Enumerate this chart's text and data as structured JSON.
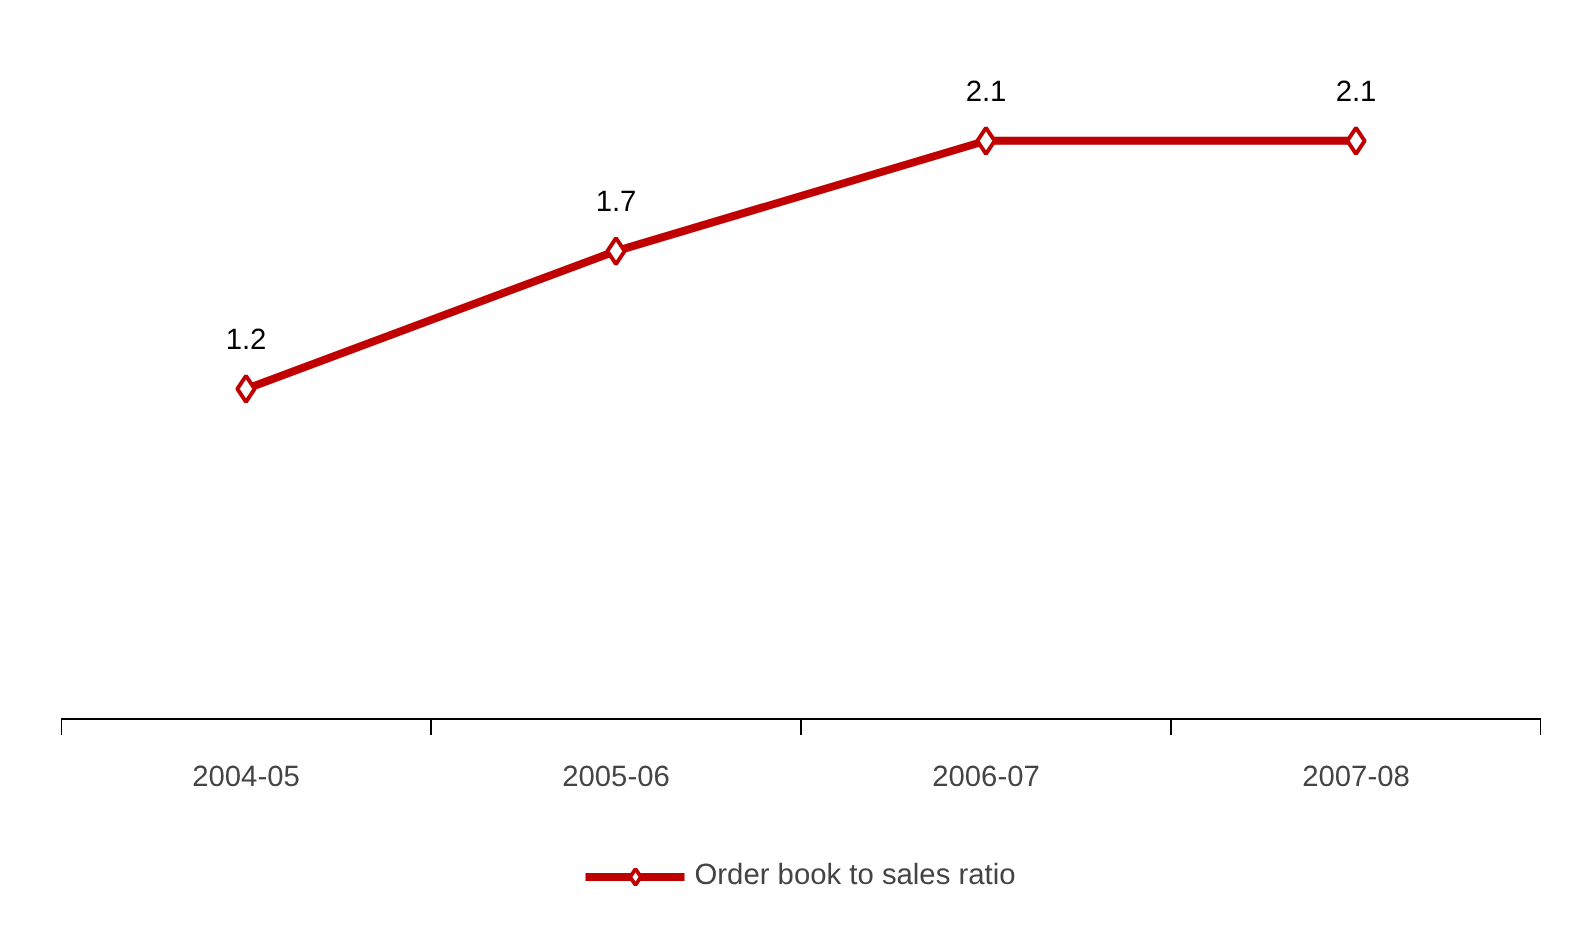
{
  "chart_data": {
    "type": "line",
    "categories": [
      "2004-05",
      "2005-06",
      "2006-07",
      "2007-08"
    ],
    "series": [
      {
        "name": "Order book to sales ratio",
        "color": "#c00000",
        "values": [
          1.2,
          1.7,
          2.1,
          2.1
        ]
      }
    ],
    "tick_labels": "x",
    "data_labels": true,
    "marker": "diamond",
    "line_style": "solid",
    "legend": "bottom",
    "grid": false
  }
}
